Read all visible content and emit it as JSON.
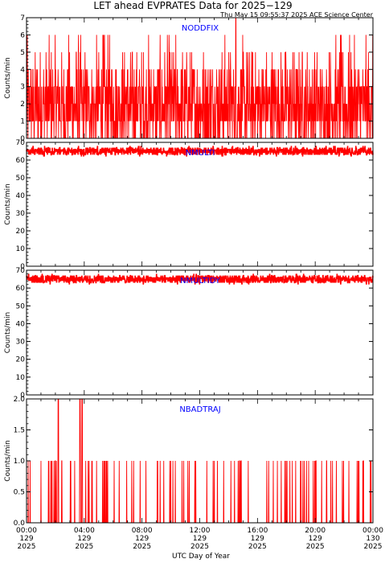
{
  "title": "LET ahead EVPRATES Data for 2025−129",
  "timestamp": "Thu May 15 09:55:37 2025 ACE Science Center",
  "xlabel": "UTC Day of Year",
  "ylabel": "Counts/min",
  "x_ticks": [
    {
      "time": "00:00",
      "day": "129",
      "year": "2025"
    },
    {
      "time": "04:00",
      "day": "129",
      "year": "2025"
    },
    {
      "time": "08:00",
      "day": "129",
      "year": "2025"
    },
    {
      "time": "12:00",
      "day": "129",
      "year": "2025"
    },
    {
      "time": "16:00",
      "day": "129",
      "year": "2025"
    },
    {
      "time": "20:00",
      "day": "129",
      "year": "2025"
    },
    {
      "time": "00:00",
      "day": "130",
      "year": "2025"
    }
  ],
  "colors": {
    "series": "#ff0000",
    "panel_label": "#0000ff",
    "axes": "#000000"
  },
  "chart_data": [
    {
      "type": "line",
      "name": "NODDFIX",
      "xlabel": "",
      "ylabel": "Counts/min",
      "xlim": [
        0,
        24
      ],
      "ylim": [
        0,
        7
      ],
      "y_ticks": [
        "0",
        "1",
        "2",
        "3",
        "4",
        "5",
        "6",
        "7"
      ],
      "y_tick_values": [
        0,
        1,
        2,
        3,
        4,
        5,
        6,
        7
      ],
      "typical_range": [
        0,
        4
      ],
      "max_values": [
        {
          "x": 14.5,
          "y": 7
        }
      ],
      "grid": false
    },
    {
      "type": "line",
      "name": "NMULTI",
      "xlabel": "",
      "ylabel": "Counts/min",
      "xlim": [
        0,
        24
      ],
      "ylim": [
        0,
        70
      ],
      "y_ticks": [
        "0",
        "10",
        "20",
        "30",
        "40",
        "50",
        "60",
        "70"
      ],
      "y_tick_values": [
        0,
        10,
        20,
        30,
        40,
        50,
        60,
        70
      ],
      "typical_range": [
        63,
        67
      ],
      "grid": false
    },
    {
      "type": "line",
      "name": "NMULTIDY",
      "xlabel": "",
      "ylabel": "Counts/min",
      "xlim": [
        0,
        24
      ],
      "ylim": [
        0,
        70
      ],
      "y_ticks": [
        "0",
        "10",
        "20",
        "30",
        "40",
        "50",
        "60",
        "70"
      ],
      "y_tick_values": [
        0,
        10,
        20,
        30,
        40,
        50,
        60,
        70
      ],
      "typical_range": [
        63,
        67
      ],
      "grid": false
    },
    {
      "type": "line",
      "name": "NBADTRAJ",
      "xlabel": "UTC Day of Year",
      "ylabel": "Counts/min",
      "xlim": [
        0,
        24
      ],
      "ylim": [
        0,
        2
      ],
      "y_ticks": [
        "0.0",
        "0.5",
        "1.0",
        "1.5",
        "2.0"
      ],
      "y_tick_values": [
        0,
        0.5,
        1.0,
        1.5,
        2.0
      ],
      "typical_range": [
        0,
        1
      ],
      "max_values": [
        {
          "x": 2.2,
          "y": 2
        },
        {
          "x": 3.7,
          "y": 2
        },
        {
          "x": 3.85,
          "y": 2
        }
      ],
      "grid": false
    }
  ]
}
